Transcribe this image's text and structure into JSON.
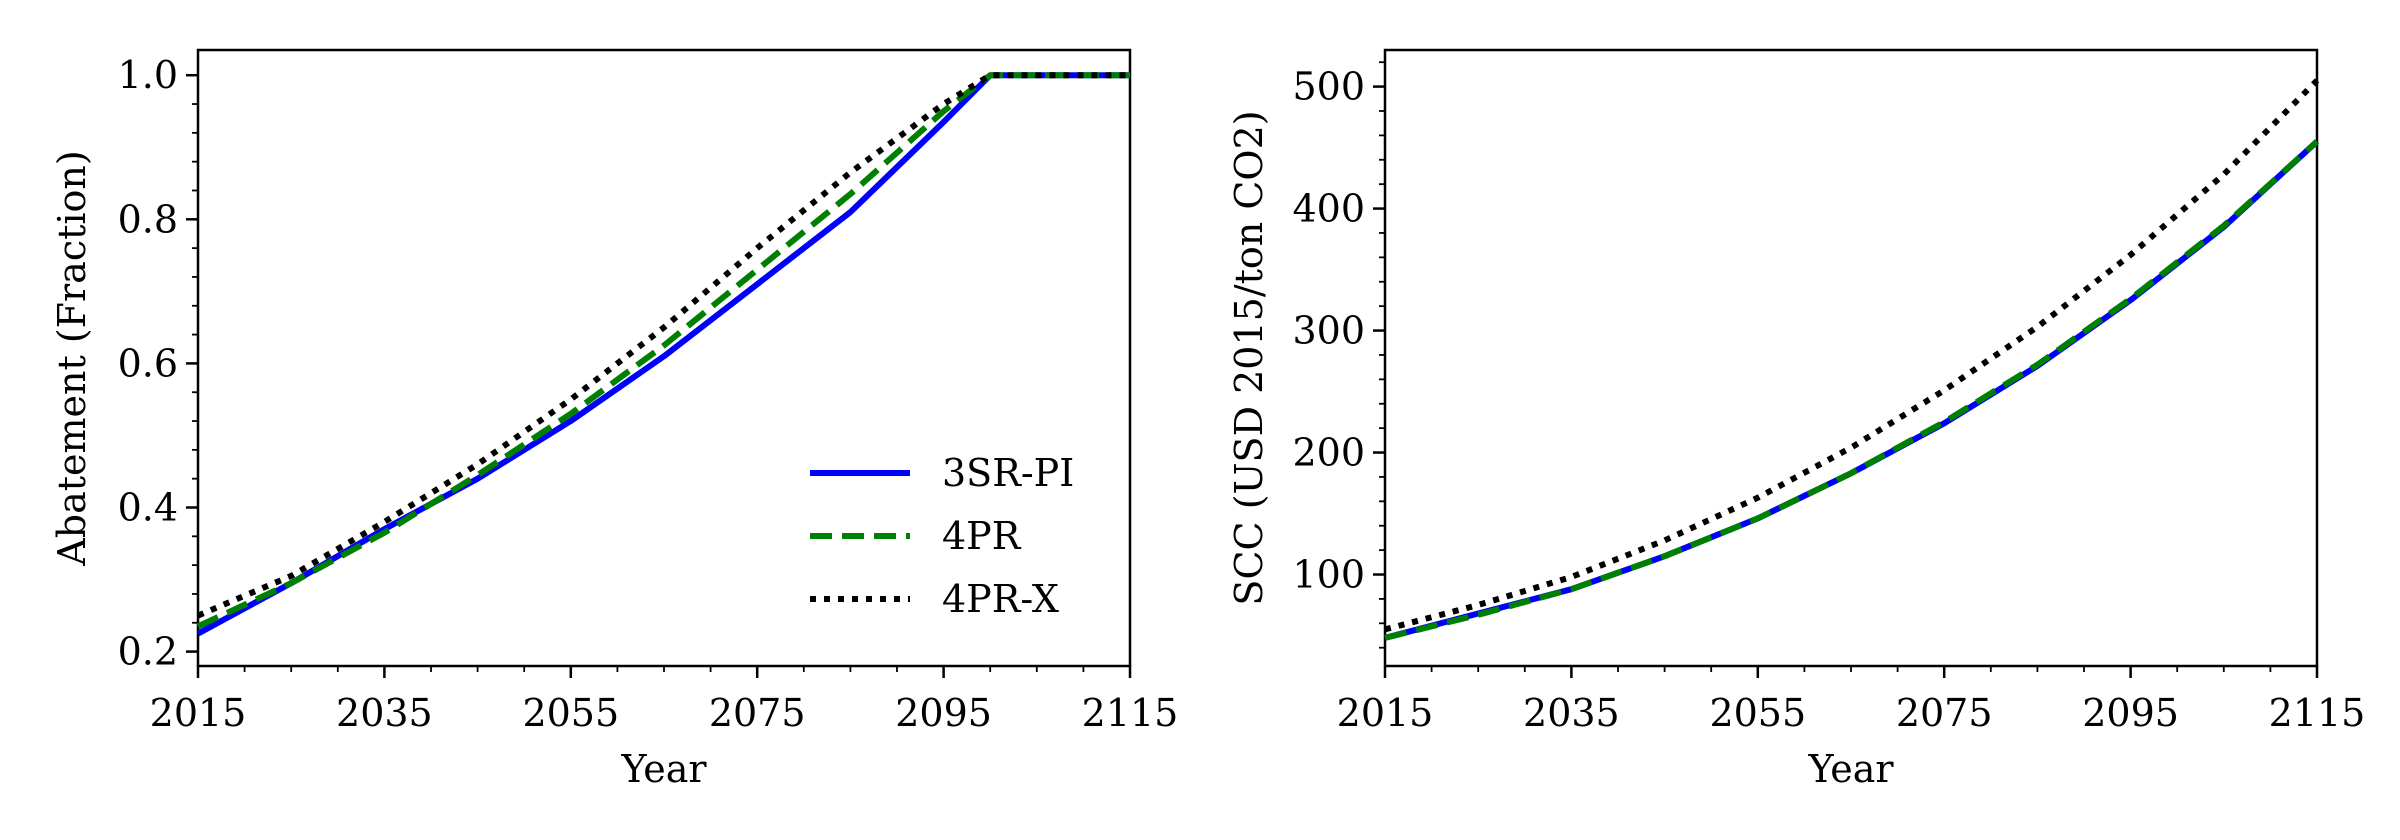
{
  "chart_data": [
    {
      "type": "line",
      "xlabel": "Year",
      "ylabel": "Abatement (Fraction)",
      "xlim": [
        2015,
        2115
      ],
      "ylim": [
        0.18,
        1.035
      ],
      "xticks": [
        2015,
        2035,
        2055,
        2075,
        2095,
        2115
      ],
      "yticks": [
        0.2,
        0.4,
        0.6,
        0.8,
        1.0
      ],
      "ytick_labels": [
        "0.2",
        "0.4",
        "0.6",
        "0.8",
        "1.0"
      ],
      "grid": false,
      "legend_position": "lower-right",
      "series": [
        {
          "name": "3SR-PI",
          "color": "#0000ff",
          "style": "solid",
          "x": [
            2015,
            2025,
            2035,
            2045,
            2055,
            2065,
            2075,
            2085,
            2095,
            2100,
            2115
          ],
          "y": [
            0.225,
            0.295,
            0.37,
            0.44,
            0.52,
            0.61,
            0.71,
            0.81,
            0.935,
            1.0,
            1.0
          ]
        },
        {
          "name": "4PR",
          "color": "#008000",
          "style": "dashed",
          "x": [
            2015,
            2025,
            2035,
            2045,
            2055,
            2065,
            2075,
            2085,
            2095,
            2100,
            2115
          ],
          "y": [
            0.235,
            0.295,
            0.365,
            0.445,
            0.53,
            0.625,
            0.73,
            0.835,
            0.95,
            1.0,
            1.0
          ]
        },
        {
          "name": "4PR-X",
          "color": "#000000",
          "style": "dotted",
          "x": [
            2015,
            2025,
            2035,
            2045,
            2055,
            2065,
            2075,
            2085,
            2095,
            2100,
            2115
          ],
          "y": [
            0.25,
            0.305,
            0.38,
            0.46,
            0.55,
            0.65,
            0.76,
            0.865,
            0.96,
            1.0,
            1.0
          ]
        }
      ]
    },
    {
      "type": "line",
      "xlabel": "Year",
      "ylabel": "SCC (USD 2015/ton CO2)",
      "xlim": [
        2015,
        2115
      ],
      "ylim": [
        25,
        530
      ],
      "xticks": [
        2015,
        2035,
        2055,
        2075,
        2095,
        2115
      ],
      "yticks": [
        100,
        200,
        300,
        400,
        500
      ],
      "ytick_labels": [
        "100",
        "200",
        "300",
        "400",
        "500"
      ],
      "grid": false,
      "series": [
        {
          "name": "3SR-PI",
          "color": "#0000ff",
          "style": "solid",
          "x": [
            2015,
            2025,
            2035,
            2045,
            2055,
            2065,
            2075,
            2085,
            2095,
            2105,
            2115
          ],
          "y": [
            48,
            68,
            88,
            115,
            146,
            183,
            224,
            271,
            325,
            385,
            455
          ]
        },
        {
          "name": "4PR",
          "color": "#008000",
          "style": "dashed",
          "x": [
            2015,
            2025,
            2035,
            2045,
            2055,
            2065,
            2075,
            2085,
            2095,
            2105,
            2115
          ],
          "y": [
            48,
            67,
            88,
            115,
            146,
            183,
            225,
            272,
            326,
            386,
            455
          ]
        },
        {
          "name": "4PR-X",
          "color": "#000000",
          "style": "dotted",
          "x": [
            2015,
            2025,
            2035,
            2045,
            2055,
            2065,
            2075,
            2085,
            2095,
            2105,
            2115
          ],
          "y": [
            55,
            75,
            98,
            128,
            163,
            204,
            251,
            303,
            362,
            428,
            505
          ]
        }
      ]
    }
  ]
}
